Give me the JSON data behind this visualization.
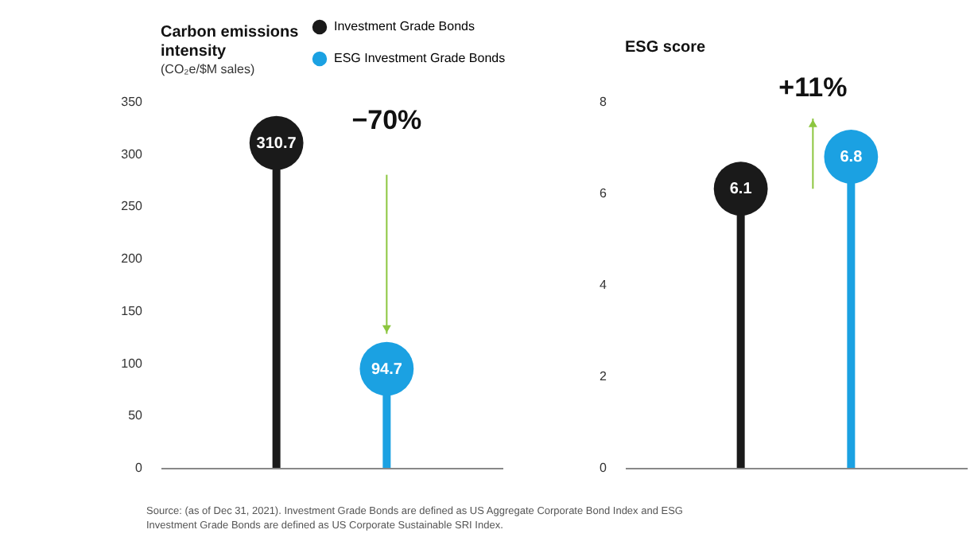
{
  "chart_data": [
    {
      "type": "lollipop",
      "title": "Carbon emissions intensity",
      "subtitle": "(CO₂e/$M sales)",
      "categories": [
        null,
        null
      ],
      "series": [
        {
          "name": "Investment Grade Bonds",
          "color": "#1a1a1a",
          "values": [
            310.7,
            null
          ]
        },
        {
          "name": "ESG Investment Grade Bonds",
          "color": "#1ba1e2",
          "values": [
            null,
            94.7
          ]
        }
      ],
      "ylim": [
        0,
        350
      ],
      "yticks": [
        0,
        50,
        100,
        150,
        200,
        250,
        300,
        350
      ],
      "grid": false,
      "legend": "top right",
      "marker": "circle",
      "data_labels": true,
      "annotations": [
        "−70%",
        "Source: (as of Dec 31, 2021). Investment Grade Bonds are defined as US Aggregate Corporate Bond Index and ESG Investment Grade Bonds are defined as US Corporate Sustainable SRI Index."
      ]
    },
    {
      "type": "lollipop",
      "title": "ESG score",
      "categories": [
        null,
        null
      ],
      "series": [
        {
          "name": "Investment Grade Bonds",
          "color": "#1a1a1a",
          "values": [
            6.1,
            null
          ]
        },
        {
          "name": "ESG Investment Grade Bonds",
          "color": "#1ba1e2",
          "values": [
            null,
            6.8
          ]
        }
      ],
      "ylim": [
        0,
        8
      ],
      "yticks": [
        0,
        2,
        4,
        6,
        8
      ],
      "grid": false,
      "legend": "top right",
      "marker": "circle",
      "data_labels": true,
      "annotations": [
        "+11%"
      ]
    }
  ]
}
